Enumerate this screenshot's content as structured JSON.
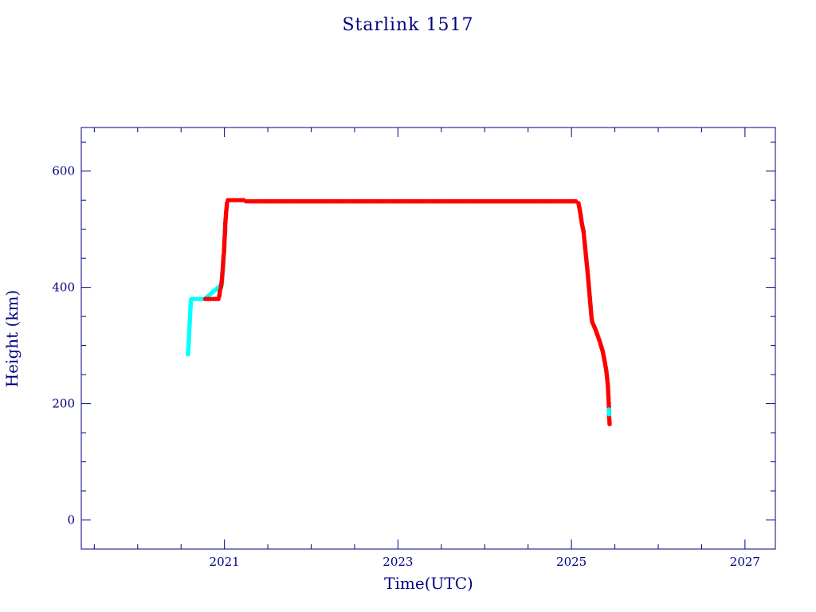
{
  "chart_data": {
    "type": "scatter",
    "title": "Starlink 1517",
    "xlabel": "Time(UTC)",
    "ylabel": "Height (km)",
    "xlim": [
      2019.35,
      2027.35
    ],
    "ylim": [
      -50,
      675
    ],
    "x_ticks": [
      2021,
      2023,
      2025,
      2027
    ],
    "x_minor_step": 0.5,
    "y_ticks": [
      0,
      200,
      400,
      600
    ],
    "y_minor_step": 50,
    "grid": false,
    "legend": "none",
    "colors": {
      "axis": "#000080",
      "primary": "#ff0000",
      "secondary": "#00ffff"
    },
    "series": [
      {
        "color": "#00ffff",
        "values": [
          [
            2020.58,
            285
          ],
          [
            2020.585,
            295
          ],
          [
            2020.59,
            310
          ],
          [
            2020.595,
            325
          ],
          [
            2020.6,
            340
          ],
          [
            2020.605,
            355
          ],
          [
            2020.61,
            368
          ],
          [
            2020.615,
            378
          ],
          [
            2020.62,
            380
          ],
          [
            2020.65,
            380
          ],
          [
            2020.68,
            380
          ],
          [
            2020.71,
            380
          ],
          [
            2020.74,
            380
          ],
          [
            2020.77,
            380
          ],
          [
            2020.97,
            405
          ],
          [
            2020.975,
            420
          ],
          [
            2021.0,
            470
          ],
          [
            2021.005,
            500
          ]
        ]
      },
      {
        "color": "#ff0000",
        "values": [
          [
            2020.78,
            380
          ],
          [
            2020.81,
            380
          ],
          [
            2020.84,
            380
          ],
          [
            2020.87,
            380
          ],
          [
            2020.9,
            380
          ],
          [
            2020.93,
            380
          ],
          [
            2020.94,
            385
          ],
          [
            2020.95,
            395
          ],
          [
            2020.96,
            400
          ],
          [
            2020.97,
            412
          ],
          [
            2020.98,
            430
          ],
          [
            2020.985,
            440
          ],
          [
            2020.99,
            455
          ],
          [
            2020.995,
            460
          ],
          [
            2021.0,
            480
          ],
          [
            2021.005,
            490
          ],
          [
            2021.01,
            510
          ],
          [
            2021.02,
            530
          ],
          [
            2021.03,
            545
          ],
          [
            2021.04,
            550
          ],
          [
            2021.1,
            550
          ],
          [
            2021.16,
            550
          ],
          [
            2021.22,
            550
          ],
          [
            2021.25,
            548
          ],
          [
            2021.35,
            548
          ],
          [
            2021.5,
            548
          ],
          [
            2021.75,
            548
          ],
          [
            2022.0,
            548
          ],
          [
            2022.25,
            548
          ],
          [
            2022.5,
            548
          ],
          [
            2022.75,
            548
          ],
          [
            2023.0,
            548
          ],
          [
            2023.25,
            548
          ],
          [
            2023.5,
            548
          ],
          [
            2023.75,
            548
          ],
          [
            2024.0,
            548
          ],
          [
            2024.25,
            548
          ],
          [
            2024.5,
            548
          ],
          [
            2024.75,
            548
          ],
          [
            2024.9,
            548
          ],
          [
            2025.05,
            548
          ],
          [
            2025.08,
            545
          ],
          [
            2025.1,
            530
          ],
          [
            2025.12,
            510
          ],
          [
            2025.14,
            495
          ],
          [
            2025.15,
            480
          ],
          [
            2025.17,
            450
          ],
          [
            2025.19,
            420
          ],
          [
            2025.21,
            385
          ],
          [
            2025.23,
            350
          ],
          [
            2025.24,
            340
          ],
          [
            2025.27,
            330
          ],
          [
            2025.3,
            318
          ],
          [
            2025.33,
            305
          ],
          [
            2025.36,
            290
          ],
          [
            2025.38,
            275
          ],
          [
            2025.4,
            258
          ],
          [
            2025.41,
            245
          ],
          [
            2025.42,
            230
          ],
          [
            2025.425,
            215
          ],
          [
            2025.43,
            200
          ],
          [
            2025.435,
            175
          ],
          [
            2025.44,
            165
          ]
        ]
      },
      {
        "color": "#00ffff",
        "values": [
          [
            2025.43,
            190
          ],
          [
            2025.435,
            182
          ]
        ]
      }
    ]
  }
}
